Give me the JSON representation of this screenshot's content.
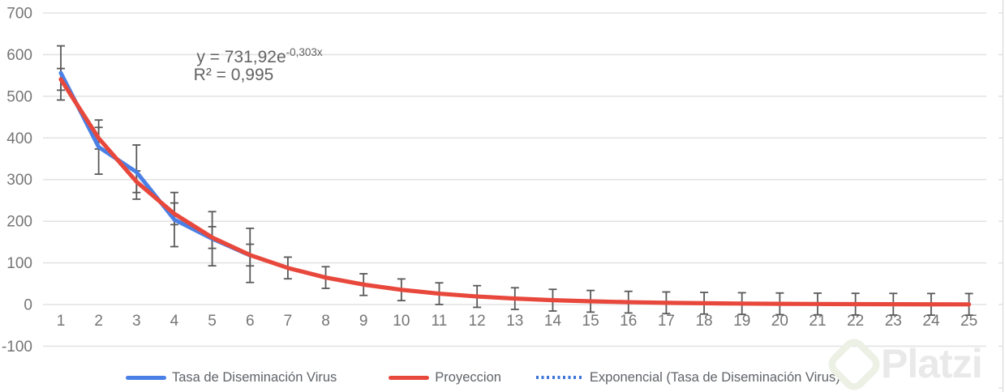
{
  "chart_data": {
    "type": "line",
    "title": "",
    "ylim": [
      -100,
      700
    ],
    "y_ticks": [
      700,
      600,
      500,
      400,
      300,
      200,
      100,
      0,
      -100
    ],
    "x": [
      1,
      2,
      3,
      4,
      5,
      6,
      7,
      8,
      9,
      10,
      11,
      12,
      13,
      14,
      15,
      16,
      17,
      18,
      19,
      20,
      21,
      22,
      23,
      24,
      25
    ],
    "grid": true,
    "legend_position": "bottom",
    "annotation": {
      "equation_prefix": "y = 731,92e",
      "equation_exponent": "-0,303x",
      "r_squared": "R² = 0,995"
    },
    "series": [
      {
        "name": "Tasa de Diseminación Virus",
        "type": "line",
        "style": "solid",
        "color": "#4a80e6",
        "x": [
          1,
          2,
          3,
          4,
          5,
          6
        ],
        "values": [
          556,
          378,
          318,
          204,
          158,
          118
        ],
        "error_bar_half": 65
      },
      {
        "name": "Proyeccion",
        "type": "line",
        "style": "solid",
        "color": "#e8483c",
        "x": [
          1,
          2,
          3,
          4,
          5,
          6,
          7,
          8,
          9,
          10,
          11,
          12,
          13,
          14,
          15,
          16,
          17,
          18,
          19,
          20,
          21,
          22,
          23,
          24,
          25
        ],
        "values": [
          540.6,
          399.3,
          294.9,
          217.8,
          160.9,
          118.8,
          87.8,
          64.8,
          47.9,
          35.4,
          26.1,
          19.3,
          14.3,
          10.5,
          7.8,
          5.7,
          4.2,
          3.1,
          2.3,
          1.7,
          1.3,
          0.9,
          0.7,
          0.5,
          0.4
        ],
        "error_bar_half": 26
      },
      {
        "name": "Exponencial (Tasa de Diseminación Virus)",
        "type": "trendline",
        "style": "dotted",
        "color": "#3f74d8",
        "formula": {
          "a": 731.92,
          "b": -0.303
        },
        "x_range": [
          1,
          25
        ]
      }
    ],
    "colors": {
      "grid": "#e3e3e3",
      "axis_text": "#757575",
      "legend_text": "#5f6368",
      "annotation_text": "#636363",
      "error_bar": "#595959",
      "right_edge": "#e0e0e0"
    }
  },
  "watermark": {
    "text": "Platzi",
    "logo_color": "#ecf0e5",
    "text_color": "#e9e9e9"
  }
}
